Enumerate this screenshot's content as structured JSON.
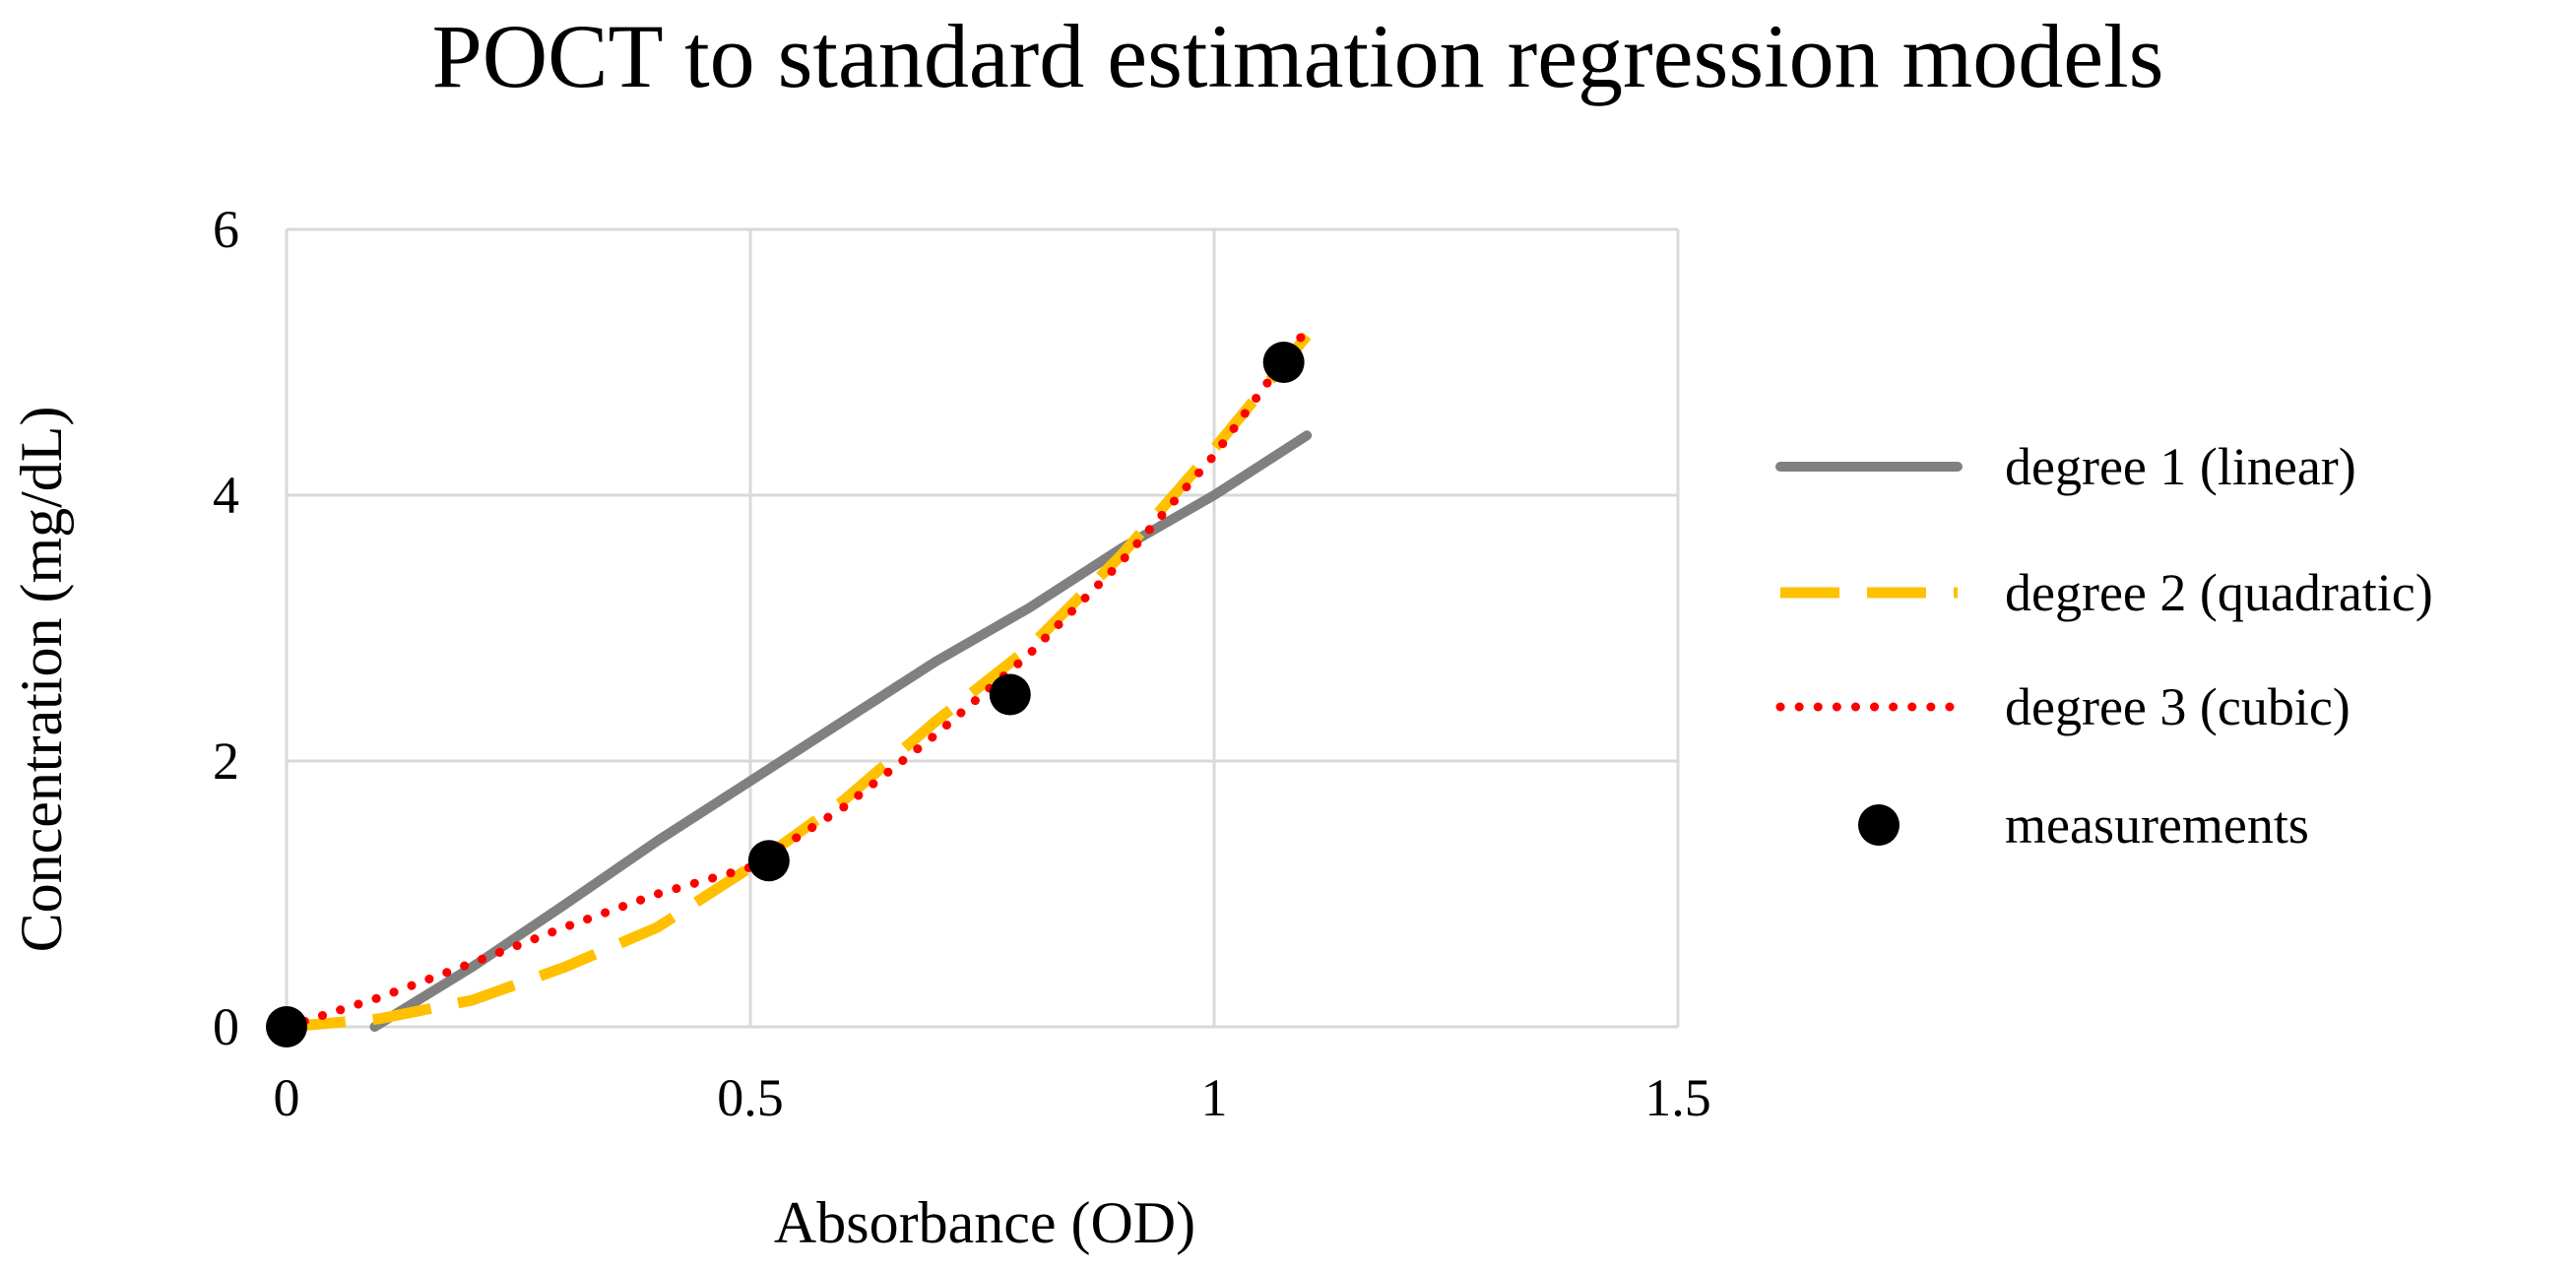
{
  "chart_data": {
    "type": "line",
    "title": "POCT to standard estimation regression models",
    "xlabel": "Absorbance (OD)",
    "ylabel": "Concentration (mg/dL)",
    "xlim": [
      0,
      1.5
    ],
    "ylim": [
      0,
      6
    ],
    "x_ticks": [
      0,
      0.5,
      1,
      1.5
    ],
    "x_tick_labels": [
      "0",
      "0.5",
      "1",
      "1.5"
    ],
    "y_ticks": [
      0,
      2,
      4,
      6
    ],
    "y_tick_labels": [
      "0",
      "2",
      "4",
      "6"
    ],
    "grid": true,
    "legend_position": "right",
    "series": [
      {
        "name": "degree 1 (linear)",
        "kind": "line",
        "color": "#808080",
        "style": "solid",
        "x": [
          0.095,
          0.2,
          0.3,
          0.4,
          0.5,
          0.6,
          0.7,
          0.8,
          0.9,
          1.0,
          1.1
        ],
        "y": [
          0.0,
          0.45,
          0.92,
          1.4,
          1.85,
          2.3,
          2.75,
          3.15,
          3.6,
          4.0,
          4.45
        ]
      },
      {
        "name": "degree 2 (quadratic)",
        "kind": "line",
        "color": "#FFC000",
        "style": "dashed",
        "x": [
          0.0,
          0.1,
          0.2,
          0.3,
          0.4,
          0.5,
          0.6,
          0.7,
          0.8,
          0.9,
          1.0,
          1.1
        ],
        "y": [
          0.0,
          0.06,
          0.2,
          0.45,
          0.75,
          1.2,
          1.7,
          2.3,
          2.85,
          3.55,
          4.35,
          5.2
        ]
      },
      {
        "name": "degree 3 (cubic)",
        "kind": "line",
        "color": "#FF0000",
        "style": "dotted",
        "x": [
          0.0,
          0.1,
          0.2,
          0.3,
          0.4,
          0.5,
          0.6,
          0.7,
          0.8,
          0.9,
          1.0,
          1.1
        ],
        "y": [
          0.0,
          0.22,
          0.48,
          0.75,
          1.0,
          1.2,
          1.65,
          2.2,
          2.8,
          3.5,
          4.3,
          5.25
        ]
      },
      {
        "name": "measurements",
        "kind": "scatter",
        "color": "#000000",
        "x": [
          0.0,
          0.52,
          0.78,
          1.075
        ],
        "y": [
          0.0,
          1.25,
          2.5,
          5.0
        ]
      }
    ]
  }
}
